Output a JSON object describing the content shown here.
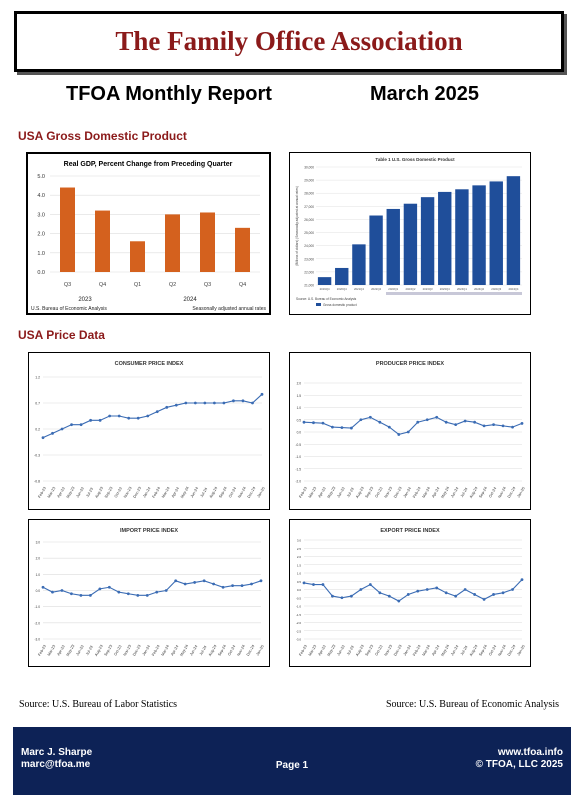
{
  "header": {
    "association": "The Family Office Association",
    "report_title": "TFOA Monthly Report",
    "report_date": "March 2025"
  },
  "sections": {
    "gdp": "USA Gross Domestic Product",
    "price": "USA Price Data"
  },
  "chart_data": [
    {
      "type": "bar",
      "title": "Real GDP, Percent Change from Preceding Quarter",
      "categories": [
        "Q3",
        "Q4",
        "Q1",
        "Q2",
        "Q3",
        "Q4"
      ],
      "years": [
        "2023",
        "2024"
      ],
      "values": [
        4.4,
        3.2,
        1.6,
        3.0,
        3.1,
        2.3
      ],
      "ylim": [
        0,
        5
      ],
      "yticks": [
        "0.0",
        "1.0",
        "2.0",
        "3.0",
        "4.0",
        "5.0"
      ],
      "footnote_left": "U.S. Bureau of Economic Analysis",
      "footnote_right": "Seasonally adjusted annual rates",
      "color": "#d4611e"
    },
    {
      "type": "bar",
      "title": "Table 1 U.S. Gross Domestic Product",
      "categories": [
        "2019Q4",
        "2020Q4",
        "2021Q4",
        "2022Q4",
        "2023Q1",
        "2023Q2",
        "2023Q3",
        "2023Q4",
        "2024Q1",
        "2024Q2",
        "2024Q3",
        "2024Q4"
      ],
      "values": [
        21600,
        22300,
        24100,
        26300,
        26800,
        27200,
        27700,
        28100,
        28300,
        28600,
        28900,
        29300
      ],
      "ylim": [
        21000,
        30000
      ],
      "yticks": [
        "21,000",
        "22,000",
        "23,000",
        "24,000",
        "25,000",
        "26,000",
        "27,000",
        "28,000",
        "29,000",
        "30,000"
      ],
      "ylabel": "(Billions of dollars) (Seasonally adjusted at annual rates)",
      "source": "Source: U.S. Bureau of Economic Analysis",
      "legend": "Gross domestic product",
      "color": "#1f4e9a"
    },
    {
      "type": "line",
      "title": "CONSUMER PRICE INDEX",
      "x": [
        "Feb-23",
        "Mar-23",
        "Apr-23",
        "May-23",
        "Jun-23",
        "Jul-23",
        "Aug-23",
        "Sep-23",
        "Oct-23",
        "Nov-23",
        "Dec-23",
        "Jan-24",
        "Feb-24",
        "Mar-24",
        "Apr-24",
        "May-24",
        "Jun-24",
        "Jul-24",
        "Aug-24",
        "Sep-24",
        "Oct-24",
        "Nov-24",
        "Dec-24",
        "Jan-25"
      ],
      "values": [
        0.2,
        0.3,
        0.4,
        0.5,
        0.5,
        0.6,
        0.6,
        0.7,
        0.7,
        0.65,
        0.65,
        0.7,
        0.8,
        0.9,
        0.95,
        1.0,
        1.0,
        1.0,
        1.0,
        1.0,
        1.05,
        1.05,
        1.0,
        1.2
      ],
      "ylim": [
        -0.8,
        1.6
      ],
      "yticks": [
        "-0.8",
        "-0.3",
        "0.2",
        "0.7",
        "1.2"
      ]
    },
    {
      "type": "line",
      "title": "PRODUCER PRICE INDEX",
      "x": [
        "Feb-23",
        "Mar-23",
        "Apr-23",
        "May-23",
        "Jun-23",
        "Jul-23",
        "Aug-23",
        "Sep-23",
        "Oct-23",
        "Nov-23",
        "Dec-23",
        "Jan-24",
        "Feb-24",
        "Mar-24",
        "Apr-24",
        "May-24",
        "Jun-24",
        "Jul-24",
        "Aug-24",
        "Sep-24",
        "Oct-24",
        "Nov-24",
        "Dec-24",
        "Jan-25"
      ],
      "values": [
        0.4,
        0.38,
        0.36,
        0.2,
        0.18,
        0.16,
        0.5,
        0.6,
        0.4,
        0.2,
        -0.1,
        0.0,
        0.4,
        0.5,
        0.6,
        0.4,
        0.3,
        0.45,
        0.4,
        0.25,
        0.3,
        0.25,
        0.2,
        0.35
      ],
      "ylim": [
        -2.0,
        2.0
      ],
      "yticks": [
        "-2.0",
        "-1.5",
        "-1.0",
        "-0.5",
        "0.0",
        "0.5",
        "1.0",
        "1.5",
        "2.0"
      ]
    },
    {
      "type": "line",
      "title": "IMPORT PRICE INDEX",
      "x": [
        "Feb-23",
        "Mar-23",
        "Apr-23",
        "May-23",
        "Jun-23",
        "Jul-23",
        "Aug-23",
        "Sep-23",
        "Oct-23",
        "Nov-23",
        "Dec-23",
        "Jan-24",
        "Feb-24",
        "Mar-24",
        "Apr-24",
        "May-24",
        "Jun-24",
        "Jul-24",
        "Aug-24",
        "Sep-24",
        "Oct-24",
        "Nov-24",
        "Dec-24",
        "Jan-25"
      ],
      "values": [
        0.2,
        -0.1,
        0.0,
        -0.2,
        -0.3,
        -0.3,
        0.1,
        0.2,
        -0.1,
        -0.2,
        -0.3,
        -0.3,
        -0.1,
        0.0,
        0.6,
        0.4,
        0.5,
        0.6,
        0.4,
        0.2,
        0.3,
        0.3,
        0.4,
        0.6
      ],
      "ylim": [
        -3.0,
        3.0
      ],
      "yticks": [
        "-3.0",
        "-2.0",
        "-1.0",
        "0.0",
        "1.0",
        "2.0",
        "3.0"
      ]
    },
    {
      "type": "line",
      "title": "EXPORT PRICE INDEX",
      "x": [
        "Feb-23",
        "Mar-23",
        "Apr-23",
        "May-23",
        "Jun-23",
        "Jul-23",
        "Aug-23",
        "Sep-23",
        "Oct-23",
        "Nov-23",
        "Dec-23",
        "Jan-24",
        "Feb-24",
        "Mar-24",
        "Apr-24",
        "May-24",
        "Jun-24",
        "Jul-24",
        "Aug-24",
        "Sep-24",
        "Oct-24",
        "Nov-24",
        "Dec-24",
        "Jan-25"
      ],
      "values": [
        0.4,
        0.3,
        0.3,
        -0.4,
        -0.5,
        -0.4,
        0.0,
        0.3,
        -0.2,
        -0.4,
        -0.7,
        -0.3,
        -0.1,
        0.0,
        0.1,
        -0.2,
        -0.4,
        0.0,
        -0.3,
        -0.6,
        -0.3,
        -0.2,
        0.0,
        0.6
      ],
      "ylim": [
        -3.0,
        3.0
      ],
      "yticks": [
        "-3.0",
        "-2.5",
        "-2.0",
        "-1.5",
        "-1.0",
        "-0.5",
        "0.0",
        "0.5",
        "1.0",
        "1.5",
        "2.0",
        "2.5",
        "3.0"
      ]
    }
  ],
  "sources": {
    "left": "Source: U.S. Bureau of Labor Statistics",
    "right": "Source: U.S. Bureau of Economic Analysis"
  },
  "footer": {
    "name": "Marc J. Sharpe",
    "email": "marc@tfoa.me",
    "page": "Page 1",
    "website": "www.tfoa.info",
    "copyright": "© TFOA, LLC 2025"
  },
  "colors": {
    "banner_text": "#8b1a1a",
    "section_heading": "#8b1a1a",
    "footer_bg": "#0d2256",
    "line_series": "#3b6cb4"
  }
}
